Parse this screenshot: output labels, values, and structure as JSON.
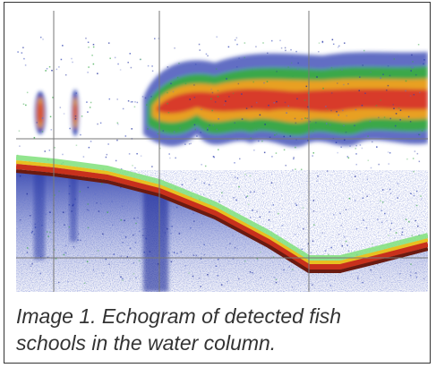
{
  "figure": {
    "caption_lines": [
      "Image 1. Echogram of detected fish",
      "schools in the water column."
    ]
  }
}
